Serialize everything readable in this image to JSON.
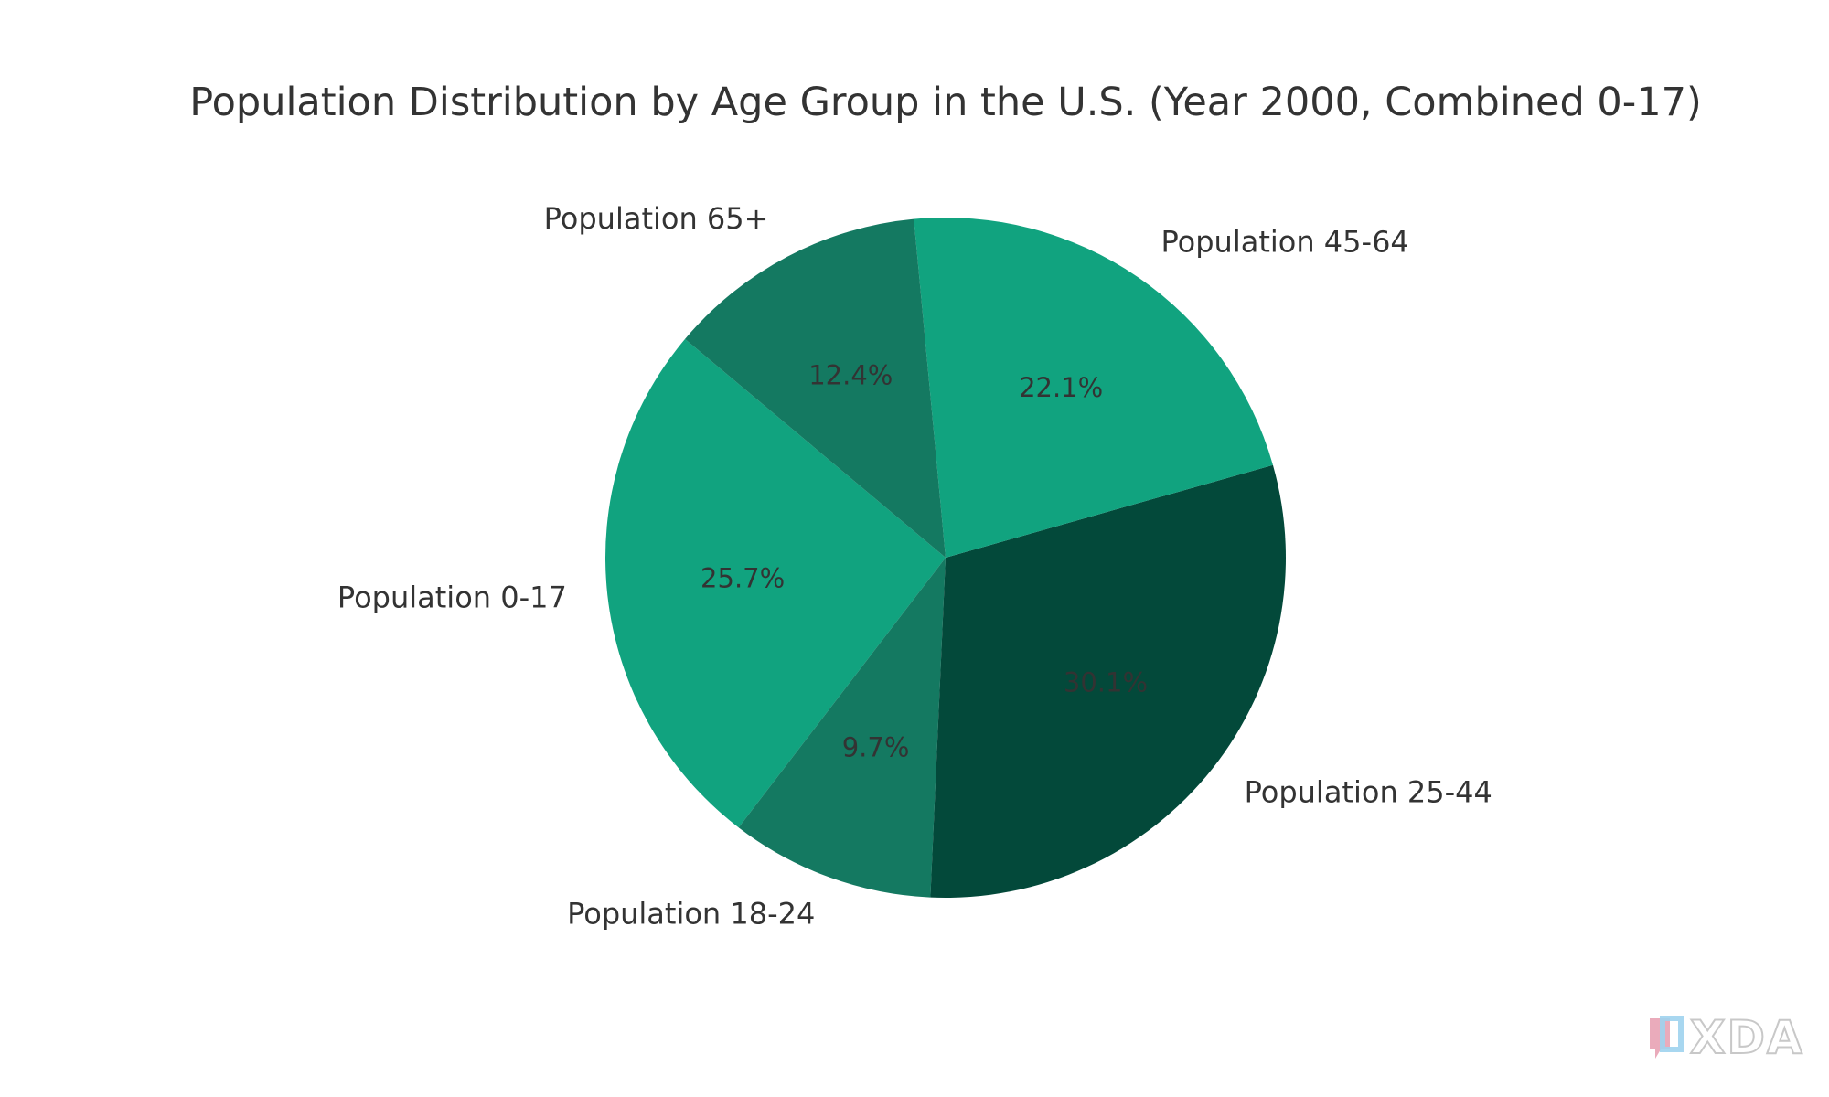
{
  "chart_data": {
    "type": "pie",
    "title": "Population Distribution by Age Group in the U.S. (Year 2000, Combined 0-17)",
    "slices": [
      {
        "label": "Population 0-17",
        "value": 25.7,
        "pct_label": "25.7%",
        "color": "#11a37f"
      },
      {
        "label": "Population 18-24",
        "value": 9.7,
        "pct_label": "9.7%",
        "color": "#147961"
      },
      {
        "label": "Population 25-44",
        "value": 30.1,
        "pct_label": "30.1%",
        "color": "#03493a"
      },
      {
        "label": "Population 45-64",
        "value": 22.1,
        "pct_label": "22.1%",
        "color": "#11a37f"
      },
      {
        "label": "Population 65+",
        "value": 12.4,
        "pct_label": "12.4%",
        "color": "#147961"
      }
    ],
    "start_angle_deg": 140,
    "direction": "counterclockwise"
  },
  "watermark": {
    "text": "XDA"
  }
}
